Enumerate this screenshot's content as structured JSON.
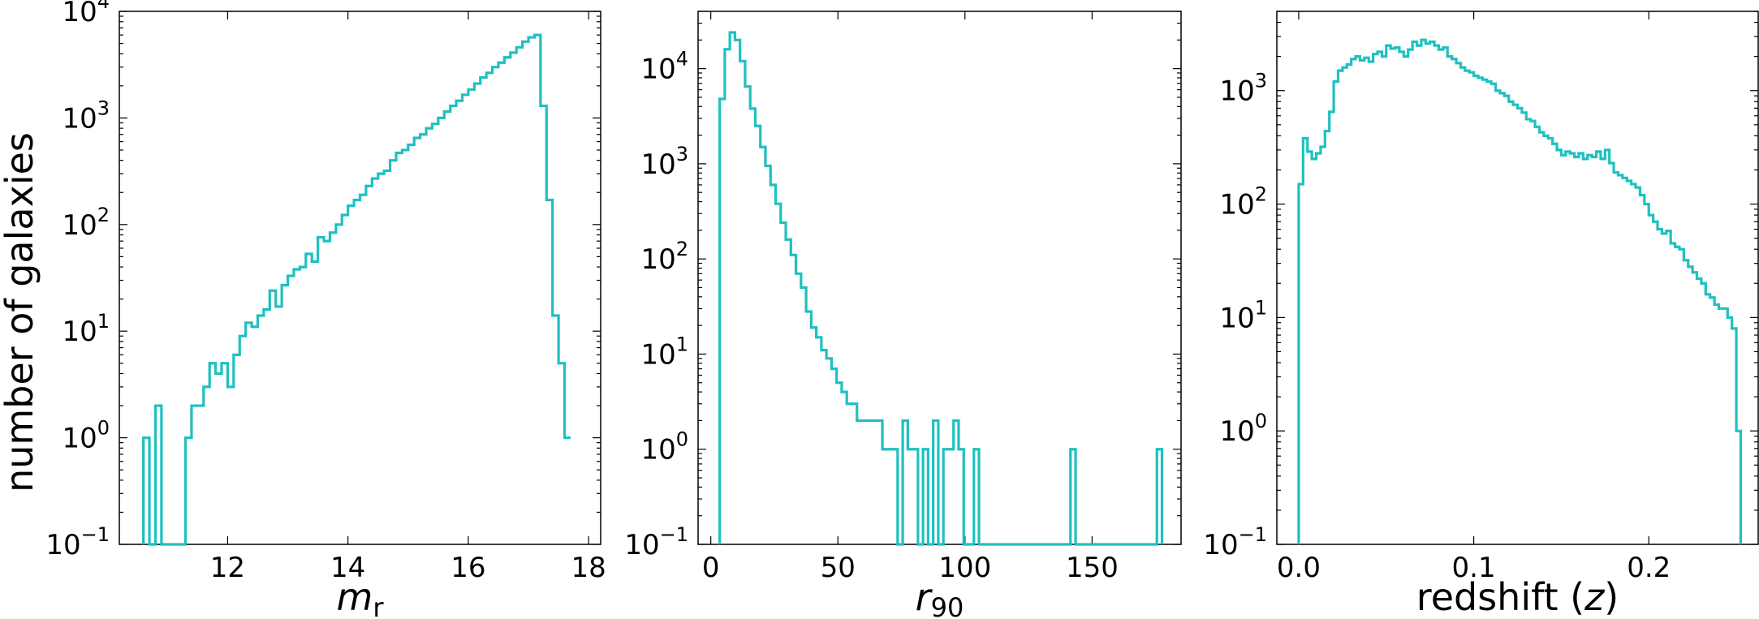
{
  "ylabel": "number of galaxies",
  "line_color": "#1fc0c0",
  "chart_data": [
    {
      "type": "histogram",
      "xlabel_main": "m",
      "xlabel_sub": "r",
      "ylabel": "number of galaxies",
      "yscale": "log",
      "xlim": [
        10.2,
        18.2
      ],
      "ylim": [
        0.1,
        10000
      ],
      "xticks": [
        12,
        14,
        16,
        18
      ],
      "yticks": [
        {
          "base": "10",
          "exp": "−1",
          "v": 0.1
        },
        {
          "base": "10",
          "exp": "0",
          "v": 1
        },
        {
          "base": "10",
          "exp": "1",
          "v": 10
        },
        {
          "base": "10",
          "exp": "2",
          "v": 100
        },
        {
          "base": "10",
          "exp": "3",
          "v": 1000
        },
        {
          "base": "10",
          "exp": "4",
          "v": 10000
        }
      ],
      "bin_edges": [
        10.6,
        10.7,
        10.8,
        10.9,
        11.0,
        11.1,
        11.2,
        11.3,
        11.4,
        11.5,
        11.6,
        11.7,
        11.8,
        11.9,
        12.0,
        12.1,
        12.2,
        12.3,
        12.4,
        12.5,
        12.6,
        12.7,
        12.8,
        12.9,
        13.0,
        13.1,
        13.2,
        13.3,
        13.4,
        13.5,
        13.6,
        13.7,
        13.8,
        13.9,
        14.0,
        14.1,
        14.2,
        14.3,
        14.4,
        14.5,
        14.6,
        14.7,
        14.8,
        14.9,
        15.0,
        15.1,
        15.2,
        15.3,
        15.4,
        15.5,
        15.6,
        15.7,
        15.8,
        15.9,
        16.0,
        16.1,
        16.2,
        16.3,
        16.4,
        16.5,
        16.6,
        16.7,
        16.8,
        16.9,
        17.0,
        17.1,
        17.2,
        17.3,
        17.4,
        17.5,
        17.6,
        17.7
      ],
      "counts": [
        1,
        0,
        2,
        0,
        0,
        0,
        0,
        1,
        2,
        2,
        3,
        5,
        4,
        5,
        3,
        6,
        9,
        12,
        11,
        14,
        16,
        24,
        17,
        27,
        33,
        38,
        40,
        53,
        45,
        76,
        70,
        84,
        100,
        123,
        150,
        170,
        190,
        230,
        270,
        300,
        320,
        400,
        470,
        500,
        560,
        650,
        700,
        800,
        880,
        1000,
        1150,
        1300,
        1450,
        1650,
        1850,
        2100,
        2400,
        2650,
        3000,
        3300,
        3700,
        4100,
        4600,
        5200,
        5700,
        6000,
        1300,
        170,
        14,
        5,
        1,
        1
      ]
    },
    {
      "type": "histogram",
      "xlabel_main": "r",
      "xlabel_sub": "90",
      "yscale": "log",
      "xlim": [
        -5,
        185
      ],
      "ylim": [
        0.1,
        40000
      ],
      "xticks": [
        0,
        50,
        100,
        150
      ],
      "yticks": [
        {
          "base": "10",
          "exp": "−1",
          "v": 0.1
        },
        {
          "base": "10",
          "exp": "0",
          "v": 1
        },
        {
          "base": "10",
          "exp": "1",
          "v": 10
        },
        {
          "base": "10",
          "exp": "2",
          "v": 100
        },
        {
          "base": "10",
          "exp": "3",
          "v": 1000
        },
        {
          "base": "10",
          "exp": "4",
          "v": 10000
        }
      ],
      "bin_start": 3.5,
      "bin_width": 2,
      "counts": [
        4800,
        16000,
        24000,
        20000,
        12000,
        6500,
        3800,
        2500,
        1500,
        950,
        600,
        380,
        240,
        160,
        110,
        70,
        50,
        28,
        19,
        15,
        11,
        9,
        7,
        5,
        4,
        3,
        3,
        2,
        2,
        2,
        2,
        2,
        1,
        1,
        1,
        0,
        2,
        1,
        1,
        0,
        1,
        0,
        2,
        0,
        1,
        1,
        2,
        1,
        0,
        0,
        1,
        0,
        0,
        0,
        0,
        0,
        0,
        0,
        0,
        0,
        0,
        0,
        0,
        0,
        0,
        0,
        0,
        0,
        0,
        1,
        0,
        0,
        0,
        0,
        0,
        0,
        0,
        0,
        0,
        0,
        0,
        0,
        0,
        0,
        0,
        0,
        1
      ]
    },
    {
      "type": "histogram",
      "xlabel_main": "redshift (",
      "xlabel_italic": "z",
      "xlabel_end": ")",
      "yscale": "log",
      "xlim": [
        -0.0125,
        0.2625
      ],
      "ylim": [
        0.1,
        5000
      ],
      "xticks": [
        {
          "v": 0.0,
          "label": "0.0"
        },
        {
          "v": 0.1,
          "label": "0.1"
        },
        {
          "v": 0.2,
          "label": "0.2"
        }
      ],
      "yticks": [
        {
          "base": "10",
          "exp": "−1",
          "v": 0.1
        },
        {
          "base": "10",
          "exp": "0",
          "v": 1
        },
        {
          "base": "10",
          "exp": "1",
          "v": 10
        },
        {
          "base": "10",
          "exp": "2",
          "v": 100
        },
        {
          "base": "10",
          "exp": "3",
          "v": 1000
        }
      ],
      "bin_start": 0.0,
      "bin_width": 0.0025,
      "counts": [
        150,
        380,
        290,
        250,
        280,
        320,
        440,
        650,
        1200,
        1500,
        1600,
        1700,
        1900,
        2000,
        1850,
        1950,
        1800,
        2100,
        2200,
        2000,
        2500,
        2350,
        2400,
        2200,
        2000,
        2300,
        2700,
        2500,
        2800,
        2600,
        2700,
        2500,
        2300,
        2400,
        2000,
        1900,
        1750,
        1600,
        1500,
        1450,
        1350,
        1300,
        1250,
        1200,
        1150,
        1000,
        950,
        900,
        800,
        750,
        700,
        640,
        560,
        540,
        480,
        430,
        400,
        380,
        340,
        300,
        270,
        290,
        280,
        260,
        280,
        250,
        270,
        260,
        290,
        250,
        300,
        230,
        190,
        180,
        170,
        160,
        150,
        140,
        120,
        100,
        80,
        70,
        60,
        55,
        58,
        45,
        42,
        40,
        32,
        28,
        25,
        22,
        20,
        16,
        15,
        13,
        12,
        12,
        10,
        8,
        1
      ]
    }
  ]
}
